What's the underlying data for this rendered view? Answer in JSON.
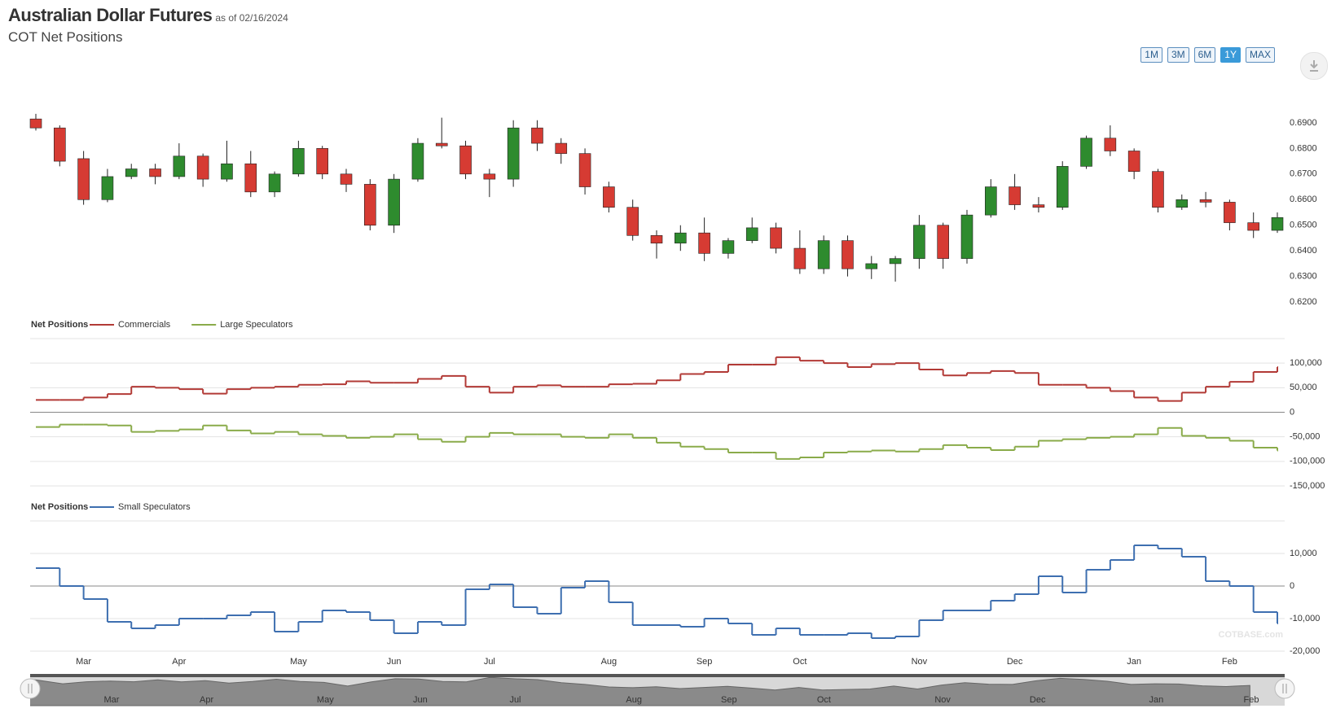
{
  "header": {
    "title": "Australian Dollar Futures",
    "as_of": "as of 02/16/2024",
    "subtitle": "COT Net Positions",
    "buttons": [
      "1M",
      "3M",
      "6M",
      "1Y",
      "MAX"
    ],
    "selected_button": "1Y",
    "watermark": "COTBASE.com"
  },
  "categories": [
    null,
    null,
    "Mar",
    null,
    null,
    null,
    "Apr",
    null,
    null,
    null,
    null,
    "May",
    null,
    null,
    null,
    "Jun",
    null,
    null,
    null,
    "Jul",
    null,
    null,
    null,
    null,
    "Aug",
    null,
    null,
    null,
    "Sep",
    null,
    null,
    null,
    "Oct",
    null,
    null,
    null,
    null,
    "Nov",
    null,
    null,
    null,
    "Dec",
    null,
    null,
    null,
    null,
    "Jan",
    null,
    null,
    null,
    "Feb",
    null,
    null
  ],
  "chart_data": [
    {
      "type": "candlestick",
      "up_color": "#2e8b2e",
      "down_color": "#d63b33",
      "open": [
        0.6915,
        0.688,
        0.676,
        0.66,
        0.669,
        0.672,
        0.669,
        0.677,
        0.668,
        0.674,
        0.663,
        0.67,
        0.68,
        0.67,
        0.666,
        0.65,
        0.668,
        0.682,
        0.681,
        0.67,
        0.668,
        0.688,
        0.682,
        0.678,
        0.665,
        0.657,
        0.646,
        0.643,
        0.647,
        0.639,
        0.644,
        0.649,
        0.641,
        0.633,
        0.644,
        0.633,
        0.635,
        0.637,
        0.65,
        0.637,
        0.654,
        0.665,
        0.658,
        0.657,
        0.673,
        0.684,
        0.679,
        0.671,
        0.657,
        0.66,
        0.659,
        0.651,
        0.648
      ],
      "high": [
        0.6935,
        0.689,
        0.679,
        0.672,
        0.674,
        0.674,
        0.682,
        0.678,
        0.683,
        0.679,
        0.671,
        0.683,
        0.681,
        0.672,
        0.668,
        0.67,
        0.684,
        0.692,
        0.683,
        0.672,
        0.691,
        0.691,
        0.684,
        0.68,
        0.667,
        0.66,
        0.648,
        0.65,
        0.653,
        0.645,
        0.653,
        0.651,
        0.648,
        0.646,
        0.646,
        0.638,
        0.638,
        0.654,
        0.651,
        0.656,
        0.668,
        0.67,
        0.661,
        0.675,
        0.685,
        0.689,
        0.68,
        0.672,
        0.662,
        0.663,
        0.66,
        0.655,
        0.655
      ],
      "low": [
        0.687,
        0.673,
        0.658,
        0.659,
        0.668,
        0.666,
        0.668,
        0.665,
        0.667,
        0.661,
        0.661,
        0.669,
        0.668,
        0.663,
        0.648,
        0.647,
        0.667,
        0.68,
        0.668,
        0.661,
        0.665,
        0.679,
        0.674,
        0.662,
        0.655,
        0.644,
        0.637,
        0.64,
        0.636,
        0.637,
        0.643,
        0.639,
        0.631,
        0.631,
        0.63,
        0.629,
        0.628,
        0.633,
        0.633,
        0.635,
        0.653,
        0.656,
        0.655,
        0.656,
        0.672,
        0.677,
        0.668,
        0.655,
        0.656,
        0.657,
        0.648,
        0.645,
        0.647
      ],
      "close": [
        0.688,
        0.675,
        0.66,
        0.669,
        0.672,
        0.669,
        0.677,
        0.668,
        0.674,
        0.663,
        0.67,
        0.68,
        0.67,
        0.666,
        0.65,
        0.668,
        0.682,
        0.681,
        0.67,
        0.668,
        0.688,
        0.682,
        0.678,
        0.665,
        0.657,
        0.646,
        0.643,
        0.647,
        0.639,
        0.644,
        0.649,
        0.641,
        0.633,
        0.644,
        0.633,
        0.635,
        0.637,
        0.65,
        0.637,
        0.654,
        0.665,
        0.658,
        0.657,
        0.673,
        0.684,
        0.679,
        0.671,
        0.657,
        0.66,
        0.659,
        0.651,
        0.648,
        0.653
      ],
      "ylim": [
        0.6175,
        0.696
      ],
      "yticks": [
        {
          "value": 0.69,
          "label": "0.6900"
        },
        {
          "value": 0.68,
          "label": "0.6800"
        },
        {
          "value": 0.67,
          "label": "0.6700"
        },
        {
          "value": 0.66,
          "label": "0.6600"
        },
        {
          "value": 0.65,
          "label": "0.6500"
        },
        {
          "value": 0.64,
          "label": "0.6400"
        },
        {
          "value": 0.63,
          "label": "0.6300"
        },
        {
          "value": 0.62,
          "label": "0.6200"
        }
      ],
      "grid": false
    },
    {
      "type": "line",
      "legend_title": "Net Positions",
      "series": [
        {
          "name": "Commercials",
          "color": "#b23a36",
          "values": [
            25000,
            25000,
            30000,
            37000,
            52000,
            50000,
            47000,
            38000,
            47000,
            50000,
            52000,
            56000,
            57000,
            63000,
            60000,
            60000,
            68000,
            74000,
            52000,
            40000,
            52000,
            55000,
            52000,
            52000,
            57000,
            58000,
            65000,
            78000,
            82000,
            97000,
            97000,
            112000,
            105000,
            100000,
            92000,
            98000,
            100000,
            87000,
            75000,
            80000,
            84000,
            80000,
            56000,
            56000,
            50000,
            43000,
            30000,
            23000,
            40000,
            52000,
            62000,
            82000,
            92000
          ]
        },
        {
          "name": "Large Speculators",
          "color": "#8aab4a",
          "values": [
            -30000,
            -25000,
            -25000,
            -27000,
            -40000,
            -38000,
            -35000,
            -27000,
            -37000,
            -43000,
            -40000,
            -45000,
            -48000,
            -52000,
            -50000,
            -45000,
            -55000,
            -60000,
            -50000,
            -42000,
            -45000,
            -45000,
            -50000,
            -52000,
            -45000,
            -52000,
            -62000,
            -70000,
            -75000,
            -82000,
            -82000,
            -95000,
            -92000,
            -82000,
            -80000,
            -78000,
            -80000,
            -75000,
            -67000,
            -72000,
            -77000,
            -70000,
            -58000,
            -55000,
            -52000,
            -50000,
            -45000,
            -32000,
            -48000,
            -52000,
            -58000,
            -72000,
            -78000
          ]
        }
      ],
      "ylim": [
        -150000,
        150000
      ],
      "yticks": [
        {
          "value": 100000,
          "label": "100,000"
        },
        {
          "value": 50000,
          "label": "50,000"
        },
        0,
        {
          "value": -50000,
          "label": "-50,000"
        },
        {
          "value": -100000,
          "label": "-100,000"
        },
        {
          "value": -150000,
          "label": "-150,000"
        }
      ],
      "grid": true
    },
    {
      "type": "line",
      "legend_title": "Net Positions",
      "series": [
        {
          "name": "Small Speculators",
          "color": "#3e6fb0",
          "values": [
            5500,
            0,
            -4000,
            -11000,
            -13000,
            -12000,
            -10000,
            -10000,
            -9000,
            -8000,
            -14000,
            -11000,
            -7500,
            -8000,
            -10500,
            -14500,
            -11000,
            -12000,
            -1000,
            500,
            -6500,
            -8500,
            -500,
            1500,
            -5000,
            -12000,
            -12000,
            -12500,
            -10000,
            -11500,
            -15000,
            -13000,
            -15000,
            -15000,
            -14500,
            -16000,
            -15500,
            -10500,
            -7500,
            -7500,
            -4500,
            -2500,
            3000,
            -2000,
            5000,
            8000,
            12500,
            11500,
            9000,
            1500,
            0,
            -8000,
            -11500
          ]
        }
      ],
      "ylim": [
        -20000,
        20000
      ],
      "yticks": [
        {
          "value": 10000,
          "label": "10,000"
        },
        0,
        {
          "value": -10000,
          "label": "-10,000"
        },
        {
          "value": -20000,
          "label": "-20,000"
        }
      ],
      "grid": true
    }
  ]
}
